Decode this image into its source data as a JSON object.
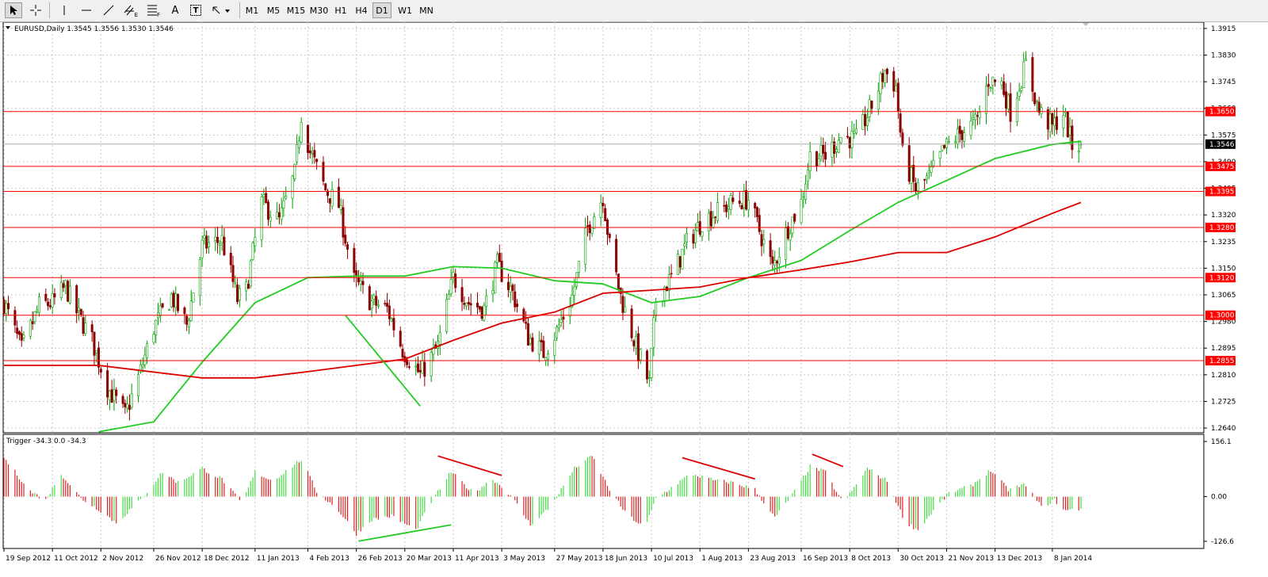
{
  "toolbar": {
    "tools": [
      {
        "name": "cursor-tool-icon"
      },
      {
        "name": "crosshair-tool-icon"
      },
      {
        "name": "vertical-line-tool-icon"
      },
      {
        "name": "horizontal-line-tool-icon"
      },
      {
        "name": "trendline-tool-icon"
      },
      {
        "name": "equidistant-channel-tool-icon",
        "label": "E"
      },
      {
        "name": "fibonacci-tool-icon",
        "label": "F"
      },
      {
        "name": "text-tool-icon",
        "label": "A"
      },
      {
        "name": "text-label-tool-icon",
        "label": "T"
      },
      {
        "name": "arrows-tool-icon"
      }
    ],
    "timeframes": [
      "M1",
      "M5",
      "M15",
      "M30",
      "H1",
      "H4",
      "D1",
      "W1",
      "MN"
    ],
    "active_timeframe": "D1"
  },
  "main_chart": {
    "header": "EURUSD,Daily  1.3545 1.3556 1.3530 1.3546",
    "current_price": "1.3546",
    "y_ticks": [
      "1.3915",
      "1.3830",
      "1.3745",
      "1.3660",
      "1.3575",
      "1.3490",
      "1.3405",
      "1.3320",
      "1.3235",
      "1.3150",
      "1.3065",
      "1.2980",
      "1.2895",
      "1.2810",
      "1.2725",
      "1.2640"
    ],
    "horizontal_levels": [
      {
        "value": 1.365,
        "label": "1.3650"
      },
      {
        "value": 1.3475,
        "label": "1.3475"
      },
      {
        "value": 1.3395,
        "label": "1.3395"
      },
      {
        "value": 1.328,
        "label": "1.3280"
      },
      {
        "value": 1.312,
        "label": "1.3120"
      },
      {
        "value": 1.3,
        "label": "1.3000"
      },
      {
        "value": 1.2855,
        "label": "1.2855"
      }
    ]
  },
  "indicator": {
    "header": "Trigger -34.3 0.0 -34.3",
    "y_ticks": [
      "156.1",
      "0.00",
      "-126.6"
    ]
  },
  "x_ticks": [
    "19 Sep 2012",
    "11 Oct 2012",
    "2 Nov 2012",
    "26 Nov 2012",
    "18 Dec 2012",
    "11 Jan 2013",
    "4 Feb 2013",
    "26 Feb 2013",
    "20 Mar 2013",
    "11 Apr 2013",
    "3 May 2013",
    "27 May 2013",
    "18 Jun 2013",
    "10 Jul 2013",
    "1 Aug 2013",
    "23 Aug 2013",
    "16 Sep 2013",
    "8 Oct 2013",
    "30 Oct 2013",
    "21 Nov 2013",
    "13 Dec 2013",
    "8 Jan 2014"
  ],
  "colors": {
    "bull_candle": "#00a000",
    "bear_candle": "#8b0000",
    "ma_fast": "#22cc22",
    "ma_slow": "#dd0000",
    "level_line": "#ff0000",
    "level_label_bg": "#ff0000",
    "grid": "#c8c8c8",
    "hist_positive": "#44dd44",
    "hist_negative": "#dd2222"
  },
  "chart_data": [
    {
      "type": "candlestick",
      "title": "EURUSD,Daily",
      "ohlc_last": {
        "open": 1.3545,
        "high": 1.3556,
        "low": 1.353,
        "close": 1.3546
      },
      "ylim": [
        1.2625,
        1.3935
      ],
      "x_range": [
        "2012-09-19",
        "2014-01-21"
      ],
      "close_path": [
        {
          "date": "2012-09-19",
          "value": 1.304
        },
        {
          "date": "2012-09-27",
          "value": 1.289
        },
        {
          "date": "2012-10-05",
          "value": 1.303
        },
        {
          "date": "2012-10-11",
          "value": 1.304
        },
        {
          "date": "2012-10-17",
          "value": 1.309
        },
        {
          "date": "2012-10-22",
          "value": 1.301
        },
        {
          "date": "2012-10-29",
          "value": 1.292
        },
        {
          "date": "2012-11-05",
          "value": 1.277
        },
        {
          "date": "2012-11-13",
          "value": 1.268
        },
        {
          "date": "2012-11-19",
          "value": 1.28
        },
        {
          "date": "2012-11-26",
          "value": 1.296
        },
        {
          "date": "2012-12-04",
          "value": 1.306
        },
        {
          "date": "2012-12-11",
          "value": 1.297
        },
        {
          "date": "2012-12-18",
          "value": 1.322
        },
        {
          "date": "2012-12-27",
          "value": 1.324
        },
        {
          "date": "2013-01-03",
          "value": 1.305
        },
        {
          "date": "2013-01-07",
          "value": 1.308
        },
        {
          "date": "2013-01-14",
          "value": 1.336
        },
        {
          "date": "2013-01-22",
          "value": 1.33
        },
        {
          "date": "2013-01-29",
          "value": 1.345
        },
        {
          "date": "2013-02-01",
          "value": 1.364
        },
        {
          "date": "2013-02-05",
          "value": 1.352
        },
        {
          "date": "2013-02-12",
          "value": 1.34
        },
        {
          "date": "2013-02-18",
          "value": 1.335
        },
        {
          "date": "2013-02-25",
          "value": 1.311
        },
        {
          "date": "2013-03-05",
          "value": 1.304
        },
        {
          "date": "2013-03-12",
          "value": 1.302
        },
        {
          "date": "2013-03-19",
          "value": 1.289
        },
        {
          "date": "2013-03-27",
          "value": 1.281
        },
        {
          "date": "2013-04-04",
          "value": 1.29
        },
        {
          "date": "2013-04-11",
          "value": 1.312
        },
        {
          "date": "2013-04-18",
          "value": 1.304
        },
        {
          "date": "2013-04-25",
          "value": 1.302
        },
        {
          "date": "2013-05-01",
          "value": 1.316
        },
        {
          "date": "2013-05-08",
          "value": 1.307
        },
        {
          "date": "2013-05-15",
          "value": 1.293
        },
        {
          "date": "2013-05-22",
          "value": 1.288
        },
        {
          "date": "2013-05-28",
          "value": 1.295
        },
        {
          "date": "2013-06-04",
          "value": 1.306
        },
        {
          "date": "2013-06-11",
          "value": 1.328
        },
        {
          "date": "2013-06-18",
          "value": 1.338
        },
        {
          "date": "2013-06-21",
          "value": 1.322
        },
        {
          "date": "2013-06-26",
          "value": 1.306
        },
        {
          "date": "2013-07-03",
          "value": 1.29
        },
        {
          "date": "2013-07-09",
          "value": 1.278
        },
        {
          "date": "2013-07-12",
          "value": 1.305
        },
        {
          "date": "2013-07-19",
          "value": 1.312
        },
        {
          "date": "2013-07-26",
          "value": 1.323
        },
        {
          "date": "2013-08-02",
          "value": 1.33
        },
        {
          "date": "2013-08-09",
          "value": 1.333
        },
        {
          "date": "2013-08-16",
          "value": 1.336
        },
        {
          "date": "2013-08-23",
          "value": 1.337
        },
        {
          "date": "2013-08-28",
          "value": 1.327
        },
        {
          "date": "2013-09-03",
          "value": 1.315
        },
        {
          "date": "2013-09-10",
          "value": 1.328
        },
        {
          "date": "2013-09-16",
          "value": 1.336
        },
        {
          "date": "2013-09-20",
          "value": 1.351
        },
        {
          "date": "2013-09-27",
          "value": 1.351
        },
        {
          "date": "2013-10-04",
          "value": 1.357
        },
        {
          "date": "2013-10-11",
          "value": 1.356
        },
        {
          "date": "2013-10-18",
          "value": 1.367
        },
        {
          "date": "2013-10-24",
          "value": 1.378
        },
        {
          "date": "2013-10-29",
          "value": 1.373
        },
        {
          "date": "2013-11-01",
          "value": 1.351
        },
        {
          "date": "2013-11-07",
          "value": 1.34
        },
        {
          "date": "2013-11-13",
          "value": 1.344
        },
        {
          "date": "2013-11-20",
          "value": 1.353
        },
        {
          "date": "2013-11-27",
          "value": 1.358
        },
        {
          "date": "2013-12-05",
          "value": 1.362
        },
        {
          "date": "2013-12-10",
          "value": 1.375
        },
        {
          "date": "2013-12-16",
          "value": 1.374
        },
        {
          "date": "2013-12-20",
          "value": 1.365
        },
        {
          "date": "2013-12-27",
          "value": 1.38
        },
        {
          "date": "2014-01-02",
          "value": 1.365
        },
        {
          "date": "2014-01-08",
          "value": 1.36
        },
        {
          "date": "2014-01-13",
          "value": 1.365
        },
        {
          "date": "2014-01-17",
          "value": 1.354
        },
        {
          "date": "2014-01-21",
          "value": 1.3546
        }
      ],
      "series": [
        {
          "name": "",
          "color": "#22cc22",
          "points": [
            {
              "date": "2012-11-01",
              "value": 1.2628
            },
            {
              "date": "2012-11-26",
              "value": 1.266
            },
            {
              "date": "2012-12-18",
              "value": 1.285
            },
            {
              "date": "2013-01-11",
              "value": 1.304
            },
            {
              "date": "2013-02-04",
              "value": 1.312
            },
            {
              "date": "2013-02-26",
              "value": 1.3125
            },
            {
              "date": "2013-03-20",
              "value": 1.3125
            },
            {
              "date": "2013-04-11",
              "value": 1.3155
            },
            {
              "date": "2013-05-03",
              "value": 1.315
            },
            {
              "date": "2013-05-27",
              "value": 1.311
            },
            {
              "date": "2013-06-18",
              "value": 1.31
            },
            {
              "date": "2013-07-10",
              "value": 1.304
            },
            {
              "date": "2013-08-01",
              "value": 1.306
            },
            {
              "date": "2013-08-23",
              "value": 1.312
            },
            {
              "date": "2013-09-16",
              "value": 1.3175
            },
            {
              "date": "2013-10-08",
              "value": 1.327
            },
            {
              "date": "2013-10-30",
              "value": 1.336
            },
            {
              "date": "2013-11-21",
              "value": 1.343
            },
            {
              "date": "2013-12-13",
              "value": 1.35
            },
            {
              "date": "2014-01-08",
              "value": 1.3545
            },
            {
              "date": "2014-01-21",
              "value": 1.3555
            }
          ]
        },
        {
          "name": "",
          "color": "#dd0000",
          "points": [
            {
              "date": "2012-09-19",
              "value": 1.284
            },
            {
              "date": "2012-11-01",
              "value": 1.284
            },
            {
              "date": "2012-12-18",
              "value": 1.28
            },
            {
              "date": "2013-01-11",
              "value": 1.28
            },
            {
              "date": "2013-02-04",
              "value": 1.282
            },
            {
              "date": "2013-03-20",
              "value": 1.286
            },
            {
              "date": "2013-04-11",
              "value": 1.292
            },
            {
              "date": "2013-05-03",
              "value": 1.2975
            },
            {
              "date": "2013-05-27",
              "value": 1.301
            },
            {
              "date": "2013-06-18",
              "value": 1.307
            },
            {
              "date": "2013-07-10",
              "value": 1.308
            },
            {
              "date": "2013-08-01",
              "value": 1.309
            },
            {
              "date": "2013-08-23",
              "value": 1.312
            },
            {
              "date": "2013-09-16",
              "value": 1.3145
            },
            {
              "date": "2013-10-08",
              "value": 1.317
            },
            {
              "date": "2013-10-30",
              "value": 1.32
            },
            {
              "date": "2013-11-21",
              "value": 1.32
            },
            {
              "date": "2013-12-13",
              "value": 1.325
            },
            {
              "date": "2014-01-08",
              "value": 1.3325
            },
            {
              "date": "2014-01-21",
              "value": 1.336
            }
          ]
        }
      ],
      "trendlines": [
        {
          "color": "#22cc22",
          "from": {
            "date": "2013-02-21",
            "value": 1.3
          },
          "to": {
            "date": "2013-03-27",
            "value": 1.271
          }
        }
      ]
    },
    {
      "type": "bar",
      "title": "Trigger",
      "values_shown": [
        -34.3,
        0.0,
        -34.3
      ],
      "ylim": [
        -126.6,
        156.1
      ],
      "oscillator_path": [
        {
          "date": "2012-09-19",
          "value": 110
        },
        {
          "date": "2012-10-01",
          "value": 15
        },
        {
          "date": "2012-10-08",
          "value": -10
        },
        {
          "date": "2012-10-15",
          "value": 65
        },
        {
          "date": "2012-10-24",
          "value": -5
        },
        {
          "date": "2012-11-02",
          "value": -40
        },
        {
          "date": "2012-11-09",
          "value": -75
        },
        {
          "date": "2012-11-20",
          "value": -10
        },
        {
          "date": "2012-11-30",
          "value": 70
        },
        {
          "date": "2012-12-07",
          "value": 40
        },
        {
          "date": "2012-12-18",
          "value": 80
        },
        {
          "date": "2012-12-27",
          "value": 50
        },
        {
          "date": "2013-01-05",
          "value": -20
        },
        {
          "date": "2013-01-11",
          "value": 70
        },
        {
          "date": "2013-01-19",
          "value": 45
        },
        {
          "date": "2013-02-01",
          "value": 105
        },
        {
          "date": "2013-02-08",
          "value": 15
        },
        {
          "date": "2013-02-18",
          "value": -40
        },
        {
          "date": "2013-02-26",
          "value": -105
        },
        {
          "date": "2013-03-05",
          "value": -65
        },
        {
          "date": "2013-03-14",
          "value": -55
        },
        {
          "date": "2013-03-25",
          "value": -95
        },
        {
          "date": "2013-04-01",
          "value": -15
        },
        {
          "date": "2013-04-10",
          "value": 70
        },
        {
          "date": "2013-04-20",
          "value": 10
        },
        {
          "date": "2013-04-29",
          "value": 50
        },
        {
          "date": "2013-05-07",
          "value": 5
        },
        {
          "date": "2013-05-16",
          "value": -80
        },
        {
          "date": "2013-05-25",
          "value": -30
        },
        {
          "date": "2013-06-05",
          "value": 80
        },
        {
          "date": "2013-06-13",
          "value": 115
        },
        {
          "date": "2013-06-21",
          "value": 20
        },
        {
          "date": "2013-06-28",
          "value": -45
        },
        {
          "date": "2013-07-07",
          "value": -90
        },
        {
          "date": "2013-07-12",
          "value": -5
        },
        {
          "date": "2013-07-20",
          "value": 30
        },
        {
          "date": "2013-07-28",
          "value": 65
        },
        {
          "date": "2013-08-08",
          "value": 45
        },
        {
          "date": "2013-08-16",
          "value": 40
        },
        {
          "date": "2013-08-26",
          "value": 20
        },
        {
          "date": "2013-09-04",
          "value": -60
        },
        {
          "date": "2013-09-12",
          "value": 5
        },
        {
          "date": "2013-09-20",
          "value": 85
        },
        {
          "date": "2013-09-27",
          "value": 70
        },
        {
          "date": "2013-10-05",
          "value": -20
        },
        {
          "date": "2013-10-16",
          "value": 80
        },
        {
          "date": "2013-10-25",
          "value": 45
        },
        {
          "date": "2013-11-02",
          "value": -70
        },
        {
          "date": "2013-11-08",
          "value": -95
        },
        {
          "date": "2013-11-15",
          "value": -40
        },
        {
          "date": "2013-11-22",
          "value": 10
        },
        {
          "date": "2013-12-02",
          "value": 30
        },
        {
          "date": "2013-12-11",
          "value": 75
        },
        {
          "date": "2013-12-19",
          "value": 20
        },
        {
          "date": "2013-12-27",
          "value": 35
        },
        {
          "date": "2014-01-03",
          "value": -30
        },
        {
          "date": "2014-01-09",
          "value": -10
        },
        {
          "date": "2014-01-14",
          "value": -40
        },
        {
          "date": "2014-01-21",
          "value": -34.3
        }
      ],
      "trendlines": [
        {
          "color": "#dd0000",
          "from": {
            "date": "2013-04-04",
            "value": 115
          },
          "to": {
            "date": "2013-05-03",
            "value": 60
          }
        },
        {
          "color": "#dd0000",
          "from": {
            "date": "2013-07-24",
            "value": 110
          },
          "to": {
            "date": "2013-08-26",
            "value": 50
          }
        },
        {
          "color": "#dd0000",
          "from": {
            "date": "2013-09-21",
            "value": 120
          },
          "to": {
            "date": "2013-10-05",
            "value": 85
          }
        },
        {
          "color": "#22cc22",
          "from": {
            "date": "2013-02-27",
            "value": -126
          },
          "to": {
            "date": "2013-04-10",
            "value": -80
          }
        }
      ]
    }
  ]
}
